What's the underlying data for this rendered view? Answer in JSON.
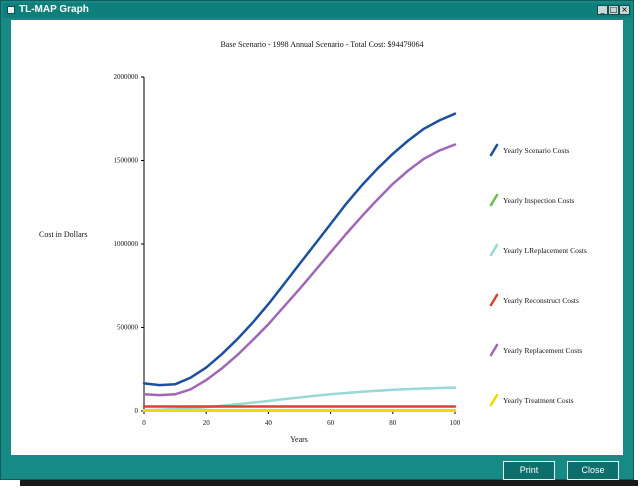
{
  "window": {
    "title": "TL-MAP Graph"
  },
  "titlebar_buttons": {
    "minimize": "_",
    "maximize": "□",
    "close": "×"
  },
  "chart_data": {
    "type": "line",
    "title": "Base Scenario - 1998 Annual Scenario - Total Cost: $94479064",
    "xlabel": "Years",
    "ylabel": "Cost in Dollars",
    "xlim": [
      0,
      100
    ],
    "ylim": [
      0,
      2000000
    ],
    "x_ticks": [
      "0",
      "20",
      "40",
      "60",
      "80",
      "100"
    ],
    "y_ticks": [
      "0",
      "500000",
      "1000000",
      "1500000",
      "2000000"
    ],
    "grid": false,
    "legend_position": "right",
    "x": [
      0,
      5,
      10,
      15,
      20,
      25,
      30,
      35,
      40,
      45,
      50,
      55,
      60,
      65,
      70,
      75,
      80,
      85,
      90,
      95,
      100
    ],
    "series": [
      {
        "name": "Yearly Scenario Costs",
        "color": "#1c4fa0",
        "values": [
          165000,
          155000,
          160000,
          200000,
          260000,
          340000,
          430000,
          530000,
          640000,
          760000,
          880000,
          1000000,
          1120000,
          1240000,
          1350000,
          1450000,
          1540000,
          1620000,
          1690000,
          1740000,
          1780000
        ]
      },
      {
        "name": "Yearly Inspection Costs",
        "color": "#6abf4b",
        "values": [
          3000,
          3000,
          3000,
          3000,
          3000,
          3000,
          3000,
          3000,
          3000,
          3000,
          3000,
          3000,
          3000,
          3000,
          3000,
          3000,
          3000,
          3000,
          3000,
          3000,
          3000
        ]
      },
      {
        "name": "Yearly LReplacement Costs",
        "color": "#98d8d6",
        "values": [
          5000,
          8000,
          12000,
          17000,
          23000,
          31000,
          40000,
          50000,
          60000,
          71000,
          81000,
          91000,
          100000,
          108000,
          115000,
          121000,
          127000,
          131000,
          135000,
          138000,
          140000
        ]
      },
      {
        "name": "Yearly Reconstruct Costs",
        "color": "#d8432a",
        "values": [
          27000,
          27000,
          27000,
          27000,
          27000,
          27000,
          27000,
          27000,
          27000,
          27000,
          27000,
          27000,
          27000,
          27000,
          27000,
          27000,
          27000,
          27000,
          27000,
          27000,
          27000
        ]
      },
      {
        "name": "Yearly Replacement Costs",
        "color": "#a066b8",
        "values": [
          100000,
          95000,
          100000,
          130000,
          185000,
          255000,
          335000,
          425000,
          520000,
          625000,
          730000,
          840000,
          950000,
          1060000,
          1165000,
          1265000,
          1360000,
          1440000,
          1510000,
          1560000,
          1595000
        ]
      },
      {
        "name": "Yearly Treatment Costs",
        "color": "#f0d800",
        "values": [
          2000,
          2000,
          2000,
          2000,
          2000,
          2000,
          2000,
          2000,
          2000,
          2000,
          2000,
          2000,
          2000,
          2000,
          2000,
          2000,
          2000,
          2000,
          2000,
          2000,
          2000
        ]
      }
    ]
  },
  "buttons": {
    "print": "Print",
    "close": "Close"
  }
}
